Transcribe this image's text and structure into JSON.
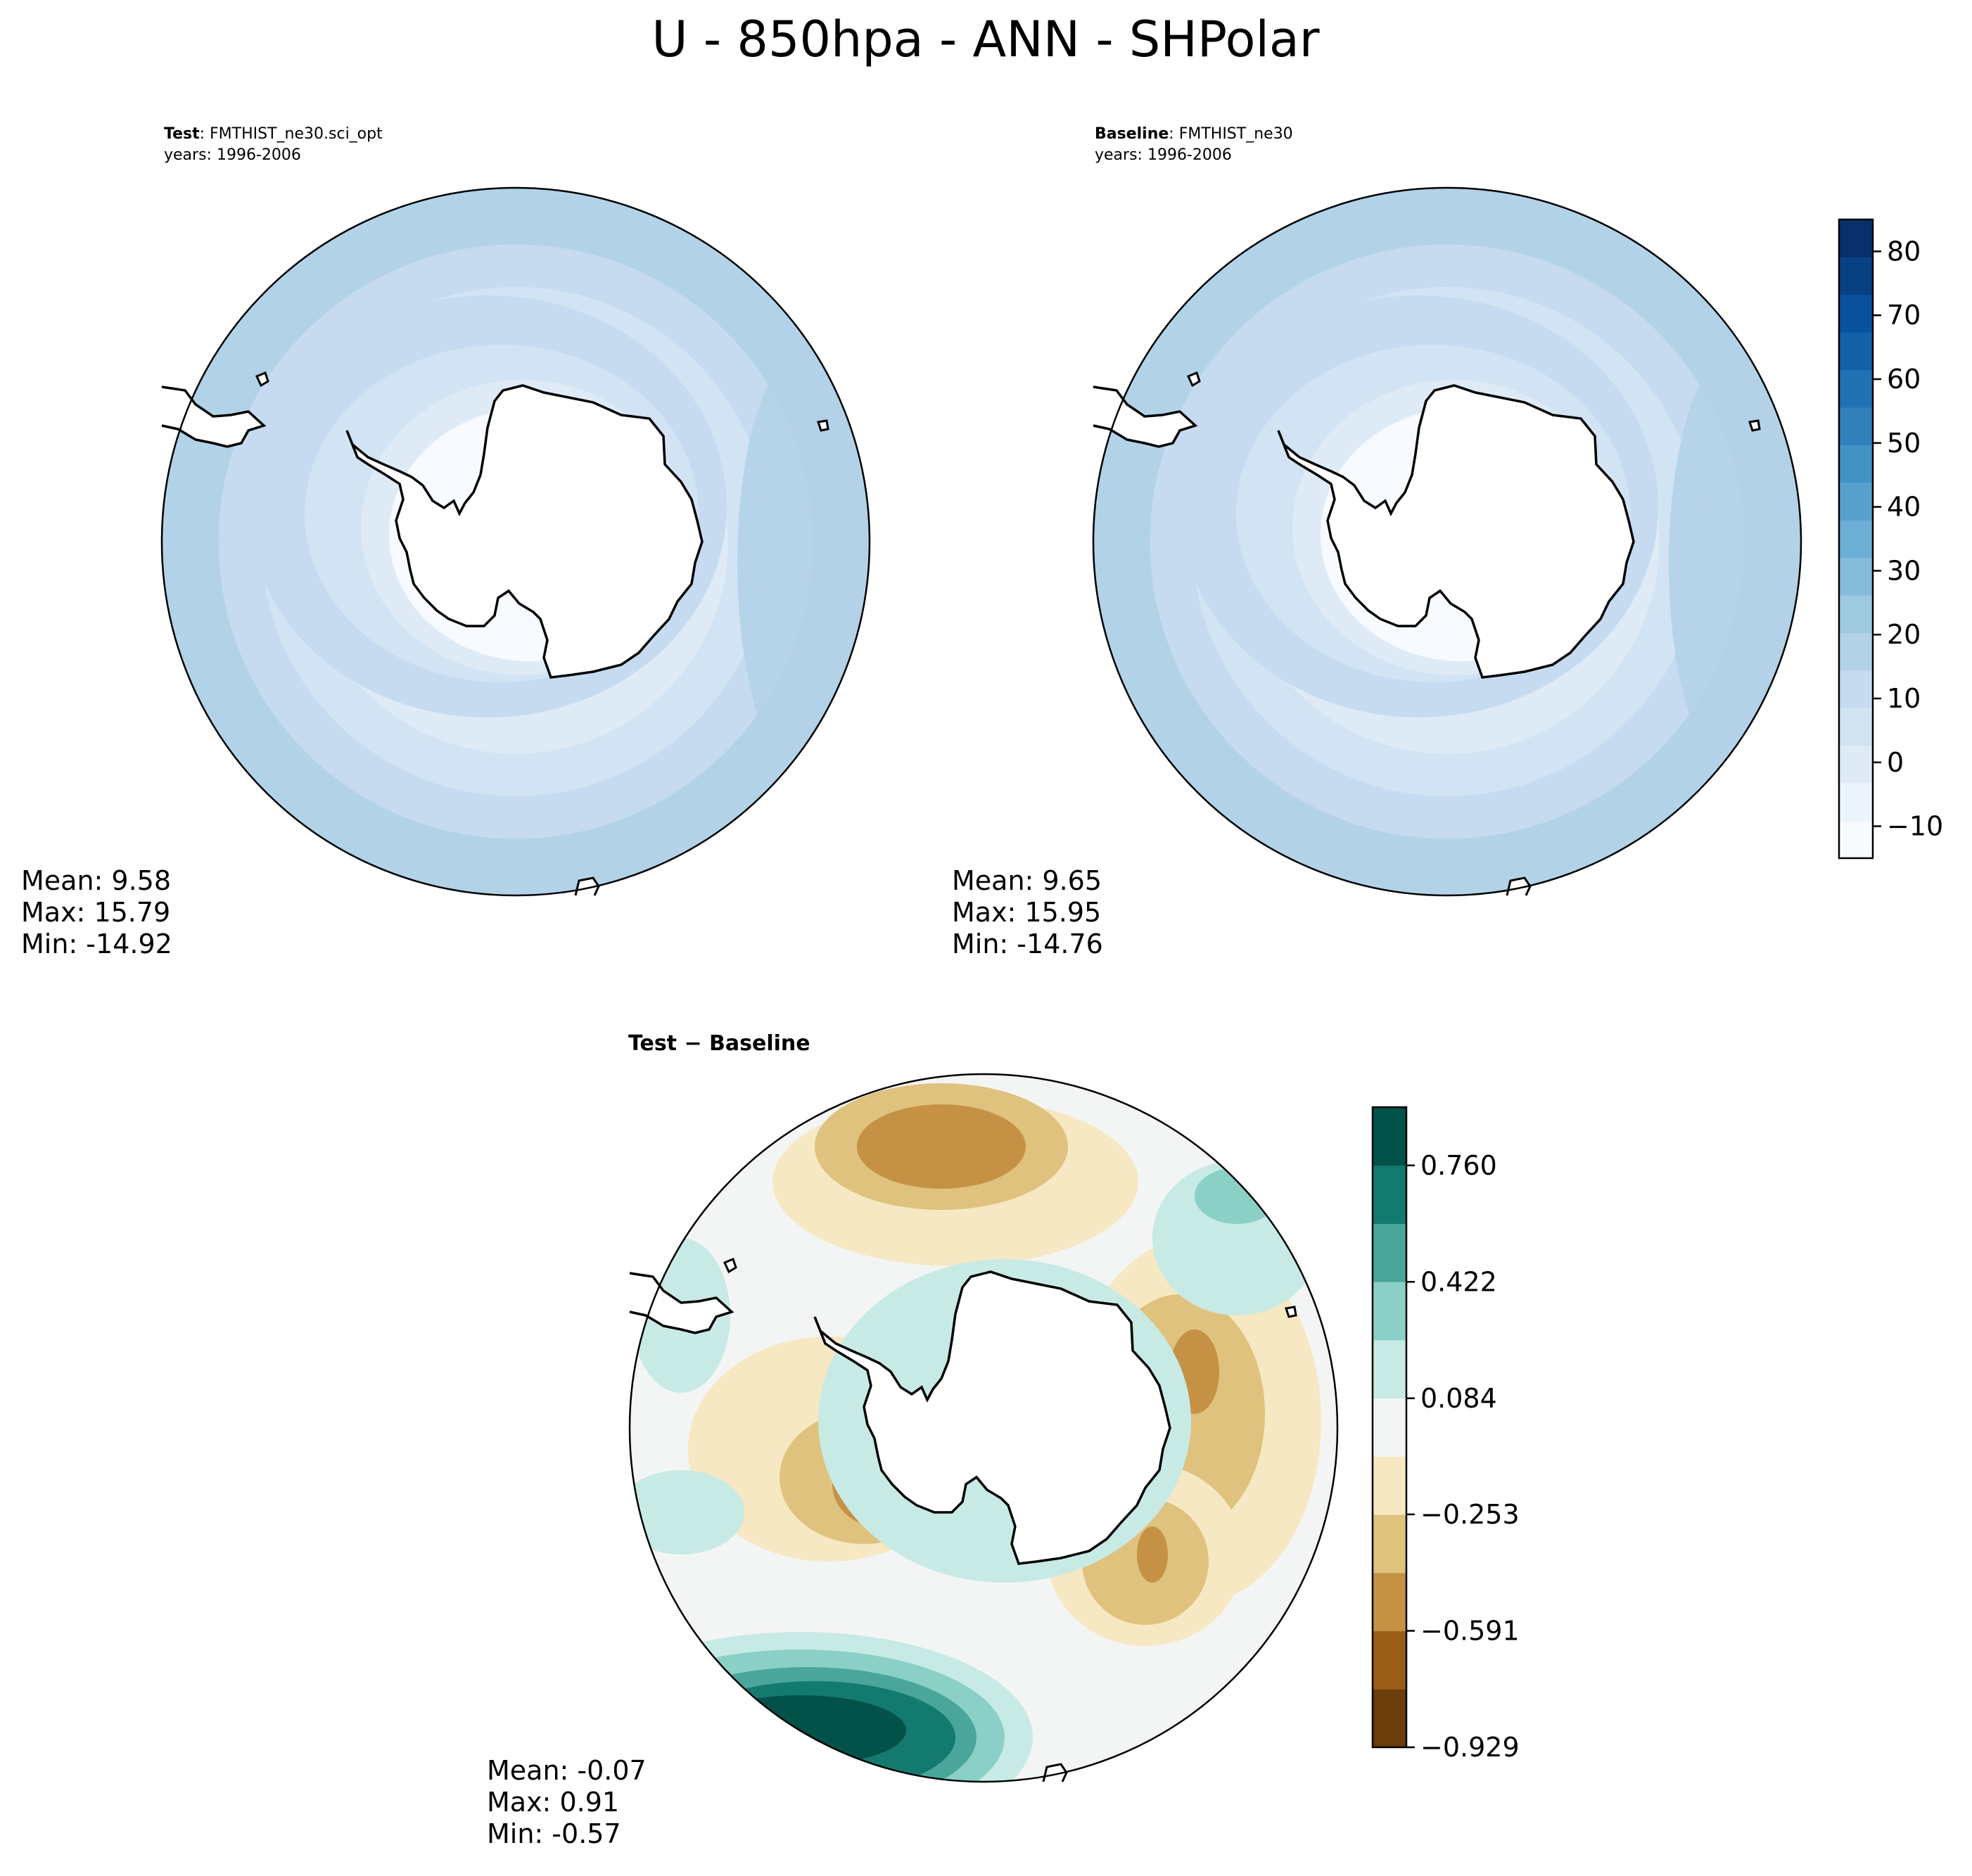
{
  "figure": {
    "title": "U - 850hpa - ANN - SHPolar"
  },
  "colors": {
    "blues": [
      "#f7fbff",
      "#ebf3fb",
      "#deebf7",
      "#d2e3f3",
      "#c6dbef",
      "#b2d2e8",
      "#9ecae1",
      "#84bcdb",
      "#6baed6",
      "#57a0ce",
      "#4292c6",
      "#3181bd",
      "#2171b5",
      "#1361a9",
      "#08519c",
      "#084084",
      "#08306b"
    ],
    "brbg": [
      "#6b3d0a",
      "#9a5d16",
      "#c59245",
      "#dfc27d",
      "#f6e8c3",
      "#f3f5f4",
      "#c7eae5",
      "#8ad0c6",
      "#4aa69a",
      "#137a70",
      "#02524a"
    ],
    "land": "#ffffff",
    "coast": "#000000"
  },
  "chart_data": [
    {
      "type": "heatmap",
      "projection": "south-polar-stereographic",
      "label_bold": "Test",
      "label_rest": ": FMTHIST_ne30.sci_opt",
      "years": "years: 1996-2006",
      "stats": {
        "mean": "Mean:  9.58",
        "max": "Max: 15.79",
        "min": "Min: -14.92"
      },
      "zones": [
        {
          "lat": -90,
          "value": -10
        },
        {
          "lat": -72,
          "value": 0
        },
        {
          "lat": -66,
          "value": 5
        },
        {
          "lat": -60,
          "value": 10
        },
        {
          "lat": -50,
          "value": 15
        },
        {
          "lat": -40,
          "value": 10
        }
      ]
    },
    {
      "type": "heatmap",
      "projection": "south-polar-stereographic",
      "label_bold": "Baseline",
      "label_rest": ": FMTHIST_ne30",
      "years": "years: 1996-2006",
      "stats": {
        "mean": "Mean:  9.65",
        "max": "Max: 15.95",
        "min": "Min: -14.76"
      },
      "zones": [
        {
          "lat": -90,
          "value": -10
        },
        {
          "lat": -72,
          "value": 0
        },
        {
          "lat": -66,
          "value": 5
        },
        {
          "lat": -60,
          "value": 10
        },
        {
          "lat": -50,
          "value": 15
        },
        {
          "lat": -40,
          "value": 10
        }
      ],
      "colorbar": {
        "range": [
          -15,
          85
        ],
        "ticks": [
          "80",
          "70",
          "60",
          "50",
          "40",
          "30",
          "20",
          "10",
          "0",
          "−10"
        ],
        "tick_values": [
          80,
          70,
          60,
          50,
          40,
          30,
          20,
          10,
          0,
          -10
        ]
      }
    },
    {
      "type": "heatmap",
      "projection": "south-polar-stereographic",
      "label": "Test − Baseline",
      "stats": {
        "mean": "Mean: -0.07",
        "max": "Max:  0.91",
        "min": "Min: -0.57"
      },
      "colorbar": {
        "range": [
          -0.929,
          0.929
        ],
        "levels": 11,
        "ticks": [
          "0.760",
          "0.422",
          "0.084",
          "−0.253",
          "−0.591",
          "−0.929"
        ],
        "tick_values": [
          0.76,
          0.422,
          0.084,
          -0.253,
          -0.591,
          -0.929
        ]
      }
    }
  ]
}
